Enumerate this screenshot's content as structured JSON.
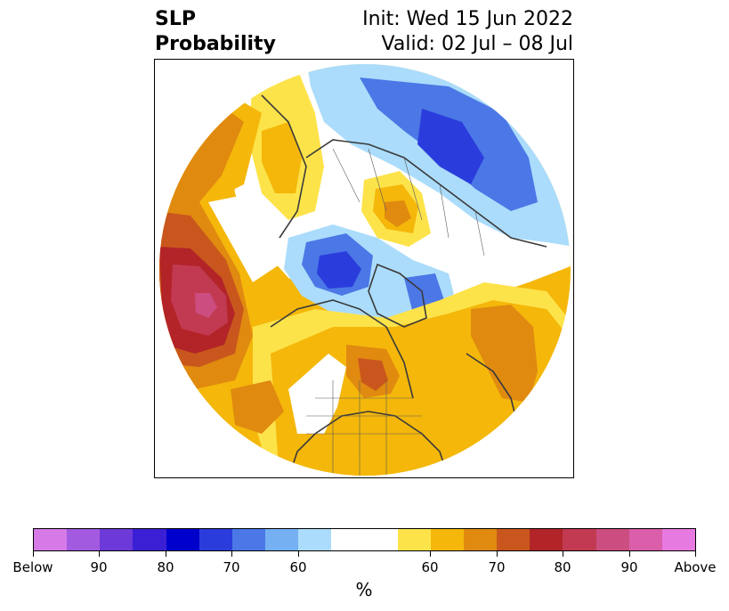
{
  "title": {
    "left_line1": "SLP",
    "left_line2": "Probability",
    "right_line1": "Init: Wed 15 Jun 2022",
    "right_line2": "Valid: 02 Jul – 08 Jul"
  },
  "colorbar": {
    "units": "%",
    "below_colors": [
      "#d67ae8",
      "#a25ae0",
      "#6c3ad8",
      "#3b1fd4",
      "#0000cc",
      "#2a3ddc",
      "#4b78e6",
      "#75b1f2",
      "#abdcfb"
    ],
    "neutral_color": "#ffffff",
    "above_colors": [
      "#fde34a",
      "#f4b70a",
      "#e08a10",
      "#c9571d",
      "#b22428",
      "#c23a52",
      "#cc4e80",
      "#db5eab",
      "#e77ae0"
    ],
    "tick_labels": [
      "Below",
      "90",
      "80",
      "70",
      "60",
      "60",
      "70",
      "80",
      "90",
      "Above"
    ]
  },
  "map": {
    "projection": "north-polar-stereographic",
    "variable": "sea-level-pressure-probability",
    "features": [
      {
        "label": "strong-above-north-pacific",
        "category": "Above",
        "max_level": "90"
      },
      {
        "label": "above-central-north-america",
        "category": "Above",
        "max_level": "70"
      },
      {
        "label": "above-north-atlantic",
        "category": "Above",
        "max_level": "70"
      },
      {
        "label": "above-western-europe",
        "category": "Above",
        "max_level": "60"
      },
      {
        "label": "above-kara-sea",
        "category": "Above",
        "max_level": "70"
      },
      {
        "label": "below-beaufort-sea",
        "category": "Below",
        "max_level": "80"
      },
      {
        "label": "below-eastern-siberia",
        "category": "Below",
        "max_level": "80"
      },
      {
        "label": "below-greenland",
        "category": "Below",
        "max_level": "60"
      }
    ]
  }
}
